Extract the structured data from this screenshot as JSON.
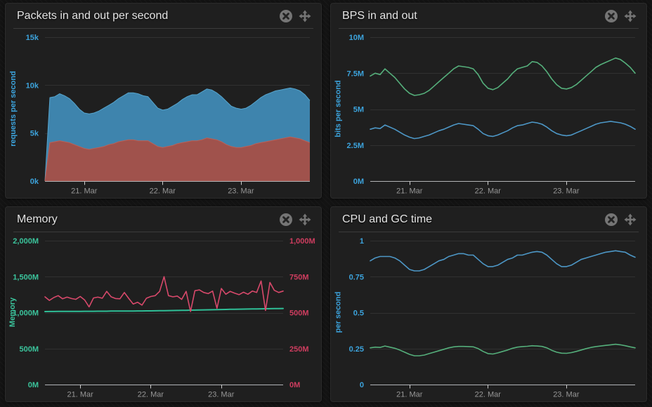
{
  "page": {
    "background": "#131313",
    "panel_background": "#1f1f1f"
  },
  "panel_actions": {
    "close_icon": "close-icon",
    "move_icon": "move-icon",
    "icon_color": "#757575"
  },
  "chart_data": [
    {
      "type": "area",
      "title": "Packets in and out per second",
      "ylabel": "requests per second",
      "axis_color": "#3ca3dc",
      "xlabel_color": "#979797",
      "grid": true,
      "legend": "none",
      "stack": true,
      "xlim": [
        20.5,
        23.88
      ],
      "ylim": [
        0,
        15000
      ],
      "yticks": [
        {
          "v": 0,
          "label": "0k"
        },
        {
          "v": 5000,
          "label": "5k"
        },
        {
          "v": 10000,
          "label": "10k"
        },
        {
          "v": 15000,
          "label": "15k"
        }
      ],
      "xticks": [
        {
          "v": 21,
          "label": "21. Mar"
        },
        {
          "v": 22,
          "label": "22. Mar"
        },
        {
          "v": 23,
          "label": "23. Mar"
        }
      ],
      "series": [
        {
          "name": "red-area-series",
          "type": "area",
          "color": "#a0524c",
          "stroke": "#b8625a",
          "values": [
            0,
            4000,
            4100,
            4200,
            4100,
            4000,
            3800,
            3600,
            3400,
            3300,
            3400,
            3500,
            3600,
            3800,
            3900,
            4100,
            4200,
            4300,
            4300,
            4200,
            4200,
            4200,
            3900,
            3600,
            3500,
            3600,
            3700,
            3900,
            4000,
            4100,
            4200,
            4200,
            4300,
            4500,
            4400,
            4300,
            4100,
            3800,
            3600,
            3500,
            3500,
            3600,
            3700,
            3900,
            4000,
            4100,
            4200,
            4300,
            4400,
            4500,
            4600,
            4500,
            4400,
            4200,
            4000
          ]
        },
        {
          "name": "blue-area-series",
          "type": "area",
          "color": "#3e84ad",
          "stroke": "#56a4cc",
          "values": [
            0,
            4700,
            4700,
            4900,
            4800,
            4600,
            4300,
            3900,
            3700,
            3700,
            3700,
            3800,
            4000,
            4100,
            4300,
            4500,
            4700,
            4900,
            4900,
            4900,
            4700,
            4600,
            4300,
            4000,
            3900,
            3900,
            4100,
            4200,
            4500,
            4700,
            4800,
            4800,
            5000,
            5100,
            5100,
            4900,
            4700,
            4500,
            4200,
            4100,
            4000,
            4000,
            4200,
            4400,
            4700,
            4900,
            5000,
            5100,
            5100,
            5100,
            5100,
            5100,
            5000,
            4800,
            4400
          ]
        }
      ]
    },
    {
      "type": "line",
      "title": "BPS in and out",
      "ylabel": "bits per second",
      "axis_color": "#3ca3dc",
      "xlabel_color": "#979797",
      "grid": true,
      "legend": "none",
      "xlim": [
        20.5,
        23.88
      ],
      "ylim": [
        0,
        10
      ],
      "yticks": [
        {
          "v": 0,
          "label": "0M"
        },
        {
          "v": 2.5,
          "label": "2.5M"
        },
        {
          "v": 5,
          "label": "5M"
        },
        {
          "v": 7.5,
          "label": "7.5M"
        },
        {
          "v": 10,
          "label": "10M"
        }
      ],
      "xticks": [
        {
          "v": 21,
          "label": "21. Mar"
        },
        {
          "v": 22,
          "label": "22. Mar"
        },
        {
          "v": 23,
          "label": "23. Mar"
        }
      ],
      "series": [
        {
          "name": "green-line-series",
          "type": "line",
          "color": "#55af7b",
          "values": [
            7.3,
            7.5,
            7.4,
            7.8,
            7.5,
            7.2,
            6.8,
            6.4,
            6.1,
            5.95,
            6.0,
            6.1,
            6.3,
            6.6,
            6.9,
            7.2,
            7.5,
            7.8,
            8.0,
            7.95,
            7.9,
            7.8,
            7.4,
            6.8,
            6.45,
            6.35,
            6.5,
            6.8,
            7.1,
            7.5,
            7.8,
            7.9,
            8.0,
            8.3,
            8.25,
            8.0,
            7.6,
            7.1,
            6.7,
            6.45,
            6.4,
            6.5,
            6.7,
            7.0,
            7.3,
            7.6,
            7.9,
            8.1,
            8.25,
            8.4,
            8.55,
            8.45,
            8.2,
            7.9,
            7.5
          ]
        },
        {
          "name": "blue-line-series",
          "type": "line",
          "color": "#4d97c6",
          "values": [
            3.6,
            3.7,
            3.65,
            3.9,
            3.75,
            3.6,
            3.4,
            3.2,
            3.05,
            2.95,
            3.0,
            3.1,
            3.2,
            3.35,
            3.5,
            3.6,
            3.75,
            3.9,
            4.0,
            3.95,
            3.9,
            3.85,
            3.6,
            3.3,
            3.15,
            3.1,
            3.2,
            3.35,
            3.5,
            3.7,
            3.85,
            3.9,
            4.0,
            4.1,
            4.05,
            3.95,
            3.75,
            3.5,
            3.3,
            3.2,
            3.15,
            3.2,
            3.35,
            3.5,
            3.65,
            3.8,
            3.95,
            4.05,
            4.1,
            4.15,
            4.1,
            4.05,
            3.95,
            3.8,
            3.6
          ]
        }
      ]
    },
    {
      "type": "line",
      "title": "Memory",
      "ylabel": "Memory",
      "axis_color": "#3bc49c",
      "y2_color": "#ce3d5f",
      "xlabel_color": "#979797",
      "grid": true,
      "legend": "none",
      "xlim": [
        20.5,
        23.88
      ],
      "ylim": [
        0,
        2000
      ],
      "y2lim": [
        0,
        1000
      ],
      "yticks": [
        {
          "v": 0,
          "label": "0M"
        },
        {
          "v": 500,
          "label": "500M"
        },
        {
          "v": 1000,
          "label": "1,000M"
        },
        {
          "v": 1500,
          "label": "1,500M"
        },
        {
          "v": 2000,
          "label": "2,000M"
        }
      ],
      "y2ticks": [
        {
          "v": 0,
          "label": "0M"
        },
        {
          "v": 250,
          "label": "250M"
        },
        {
          "v": 500,
          "label": "500M"
        },
        {
          "v": 750,
          "label": "750M"
        },
        {
          "v": 1000,
          "label": "1,000M"
        }
      ],
      "xticks": [
        {
          "v": 21,
          "label": "21. Mar"
        },
        {
          "v": 22,
          "label": "22. Mar"
        },
        {
          "v": 23,
          "label": "23. Mar"
        }
      ],
      "series": [
        {
          "name": "green-line-series",
          "type": "line",
          "color": "#2fbf97",
          "width": 2,
          "values": [
            1015,
            1016,
            1016,
            1017,
            1017,
            1017,
            1018,
            1018,
            1018,
            1019,
            1019,
            1019,
            1020,
            1020,
            1020,
            1021,
            1021,
            1021,
            1022,
            1022,
            1022,
            1023,
            1023,
            1024,
            1024,
            1025,
            1026,
            1027,
            1028,
            1029,
            1030,
            1031,
            1032,
            1034,
            1035,
            1036,
            1038,
            1039,
            1040,
            1042,
            1043,
            1044,
            1046,
            1047,
            1048,
            1049,
            1050,
            1051,
            1052,
            1053,
            1054,
            1055,
            1056,
            1057,
            1058
          ]
        },
        {
          "name": "pink-line-series",
          "type": "line",
          "color": "#d8496b",
          "axis": "right",
          "values": [
            610,
            585,
            605,
            618,
            596,
            608,
            598,
            592,
            612,
            588,
            540,
            602,
            608,
            600,
            648,
            610,
            598,
            596,
            640,
            598,
            560,
            572,
            552,
            600,
            612,
            618,
            648,
            750,
            618,
            610,
            615,
            592,
            648,
            508,
            652,
            658,
            640,
            632,
            650,
            530,
            668,
            628,
            648,
            635,
            625,
            642,
            628,
            650,
            640,
            720,
            515,
            710,
            655,
            640,
            650
          ]
        }
      ]
    },
    {
      "type": "line",
      "title": "CPU and GC time",
      "ylabel": "per second",
      "axis_color": "#3ca3dc",
      "xlabel_color": "#979797",
      "grid": true,
      "legend": "none",
      "xlim": [
        20.5,
        23.88
      ],
      "ylim": [
        0,
        1
      ],
      "yticks": [
        {
          "v": 0,
          "label": "0"
        },
        {
          "v": 0.25,
          "label": "0.25"
        },
        {
          "v": 0.5,
          "label": "0.5"
        },
        {
          "v": 0.75,
          "label": "0.75"
        },
        {
          "v": 1,
          "label": "1"
        }
      ],
      "xticks": [
        {
          "v": 21,
          "label": "21. Mar"
        },
        {
          "v": 22,
          "label": "22. Mar"
        },
        {
          "v": 23,
          "label": "23. Mar"
        }
      ],
      "series": [
        {
          "name": "blue-line-series",
          "type": "line",
          "color": "#4d97c6",
          "values": [
            0.86,
            0.88,
            0.89,
            0.89,
            0.89,
            0.88,
            0.86,
            0.83,
            0.8,
            0.79,
            0.79,
            0.8,
            0.82,
            0.84,
            0.86,
            0.87,
            0.89,
            0.9,
            0.91,
            0.91,
            0.9,
            0.9,
            0.87,
            0.84,
            0.82,
            0.82,
            0.83,
            0.85,
            0.87,
            0.88,
            0.9,
            0.9,
            0.91,
            0.92,
            0.925,
            0.92,
            0.9,
            0.87,
            0.84,
            0.82,
            0.82,
            0.83,
            0.85,
            0.87,
            0.88,
            0.89,
            0.9,
            0.91,
            0.92,
            0.925,
            0.93,
            0.925,
            0.92,
            0.9,
            0.885
          ]
        },
        {
          "name": "green-line-series",
          "type": "line",
          "color": "#55af7b",
          "values": [
            0.255,
            0.26,
            0.258,
            0.268,
            0.26,
            0.252,
            0.24,
            0.225,
            0.21,
            0.2,
            0.2,
            0.205,
            0.215,
            0.225,
            0.235,
            0.245,
            0.255,
            0.262,
            0.265,
            0.265,
            0.264,
            0.262,
            0.25,
            0.23,
            0.215,
            0.212,
            0.22,
            0.23,
            0.24,
            0.252,
            0.26,
            0.264,
            0.266,
            0.27,
            0.268,
            0.265,
            0.255,
            0.238,
            0.225,
            0.218,
            0.217,
            0.222,
            0.23,
            0.24,
            0.25,
            0.258,
            0.264,
            0.268,
            0.272,
            0.276,
            0.28,
            0.276,
            0.27,
            0.262,
            0.255
          ]
        }
      ]
    }
  ]
}
